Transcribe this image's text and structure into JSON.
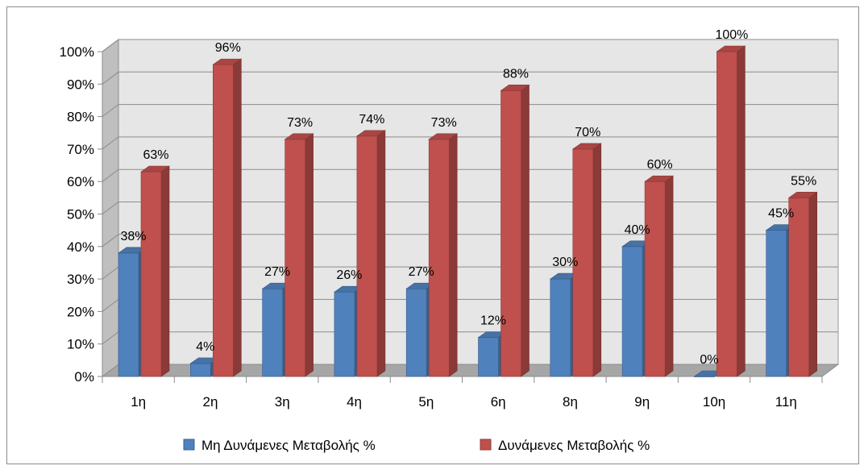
{
  "chart_data": {
    "type": "bar",
    "style": "3d-clustered-column",
    "categories": [
      "1η",
      "2η",
      "3η",
      "4η",
      "5η",
      "6η",
      "8η",
      "9η",
      "10η",
      "11η"
    ],
    "series": [
      {
        "name": "Μη Δυνάμενες Μεταβολής %",
        "color": "#4f81bd",
        "values": [
          38,
          4,
          27,
          26,
          27,
          12,
          30,
          40,
          0,
          45
        ],
        "labels": [
          "38%",
          "4%",
          "27%",
          "26%",
          "27%",
          "12%",
          "30%",
          "40%",
          "0%",
          "45%"
        ]
      },
      {
        "name": "Δυνάμενες Μεταβολής %",
        "color": "#c0504d",
        "values": [
          63,
          96,
          73,
          74,
          73,
          88,
          70,
          60,
          100,
          55
        ],
        "labels": [
          "63%",
          "96%",
          "73%",
          "74%",
          "73%",
          "88%",
          "70%",
          "60%",
          "100%",
          "55%"
        ]
      }
    ],
    "y_ticks": [
      "0%",
      "10%",
      "20%",
      "30%",
      "40%",
      "50%",
      "60%",
      "70%",
      "80%",
      "90%",
      "100%"
    ],
    "ylim": [
      0,
      100
    ],
    "grid": true,
    "legend_position": "bottom",
    "title": "",
    "xlabel": "",
    "ylabel": ""
  }
}
